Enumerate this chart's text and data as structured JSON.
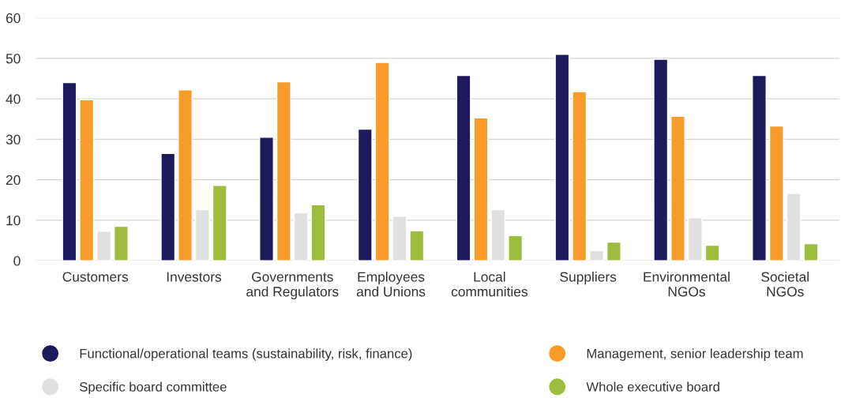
{
  "chart_data": {
    "type": "bar",
    "categories": [
      "Customers",
      "Investors",
      "Governments\nand Regulators",
      "Employees\nand Unions",
      "Local\ncommunities",
      "Suppliers",
      "Environmental\nNGOs",
      "Societal\nNGOs"
    ],
    "series": [
      {
        "name": "Functional/operational teams (sustainability, risk, finance)",
        "color": "#1c1a5c",
        "values": [
          44,
          26.5,
          30.5,
          32.5,
          45.8,
          51,
          49.8,
          45.8
        ]
      },
      {
        "name": "Management, senior leadership team",
        "color": "#f89c29",
        "values": [
          39.8,
          42.2,
          44.2,
          49,
          35.3,
          41.8,
          35.7,
          33.3
        ]
      },
      {
        "name": "Specific board committee",
        "color": "#dfe0e1",
        "values": [
          7.3,
          12.6,
          11.8,
          11,
          12.6,
          2.5,
          10.6,
          16.6
        ]
      },
      {
        "name": "Whole executive board",
        "color": "#9dbd3f",
        "values": [
          8.5,
          18.6,
          13.8,
          7.4,
          6.2,
          4.6,
          3.8,
          4.2
        ]
      }
    ],
    "ylim": [
      0,
      60
    ],
    "yticks": [
      0,
      10,
      20,
      30,
      40,
      50,
      60
    ],
    "grid": "y",
    "legend": "bottom"
  }
}
